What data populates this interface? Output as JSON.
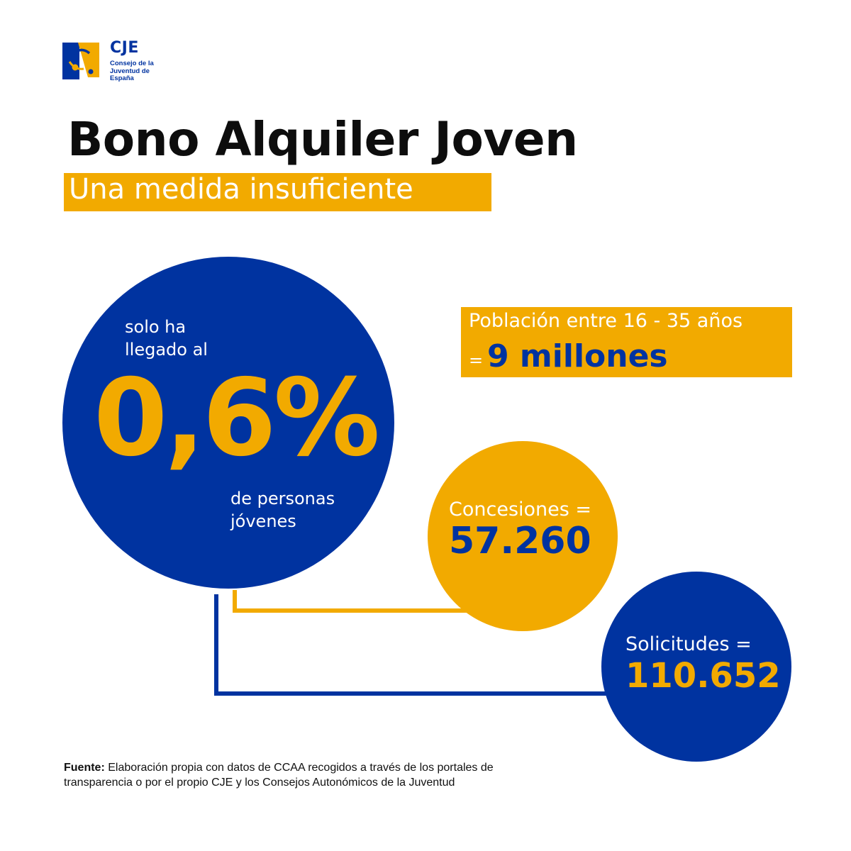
{
  "colors": {
    "brand_blue": "#0033a0",
    "brand_yellow": "#f2aa00",
    "text_dark": "#0d0d0d",
    "background": "#ffffff"
  },
  "logo": {
    "name": "CJE",
    "subtitle": "Consejo de la Juventud de España",
    "icon": "cje-logo-icon"
  },
  "header": {
    "title": "Bono Alquiler Joven",
    "subtitle": "Una medida insuficiente"
  },
  "main_stat": {
    "intro": "solo ha llegado al",
    "value": "0,6%",
    "outro": "de personas jóvenes"
  },
  "population": {
    "label": "Población entre 16 - 35 años",
    "equals": "=",
    "value": "9 millones"
  },
  "concessions": {
    "label": "Concesiones =",
    "value": "57.260"
  },
  "applications": {
    "label": "Solicitudes =",
    "value": "110.652"
  },
  "source": {
    "label": "Fuente:",
    "text": "Elaboración propia con datos de CCAA recogidos a través de los portales de transparencia o por el propio CJE y los Consejos Autonómicos de la Juventud"
  }
}
